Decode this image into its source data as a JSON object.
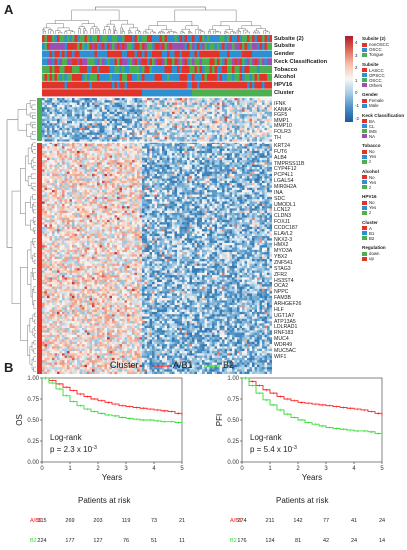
{
  "panel_a": {
    "letter": "A",
    "annotation_rows": [
      "Subsite (2)",
      "Subsite",
      "Gender",
      "Keck Classification",
      "Tobacco",
      "Alcohol",
      "HPV16",
      "Cluster"
    ],
    "genes": [
      "IFNK",
      "KANK4",
      "FGF5",
      "MMP1",
      "MMP10",
      "FOLR3",
      "TH",
      "KRT24",
      "FUT6",
      "ALB4",
      "TMPRSS11B",
      "CYP4F12",
      "PCP4L1",
      "LGALS4",
      "MIR0H2A",
      "INA",
      "SDC",
      "UMODL1",
      "LCN12",
      "CLDN3",
      "FOXJ1",
      "CCDC187",
      "ELAVL2",
      "NKX2-3",
      "HMX2",
      "MYO3A",
      "YBX2",
      "ZNF541",
      "STAG3",
      "ZFR2",
      "HS3ST4",
      "OCA2",
      "NPPC",
      "FAM3B",
      "ARHGEF26",
      "HLF",
      "UGT1A7",
      "ATP13A5",
      "LDLRAD1",
      "RNF183",
      "MUC4",
      "WDR49",
      "MUC5AC",
      "WIF1"
    ],
    "colorbar": {
      "ticks": [
        "4",
        "3",
        "2",
        "1",
        "0",
        "-1",
        "-2"
      ]
    },
    "legends": [
      {
        "title": "Subsite (2)",
        "items": [
          {
            "label": "nonOSCC",
            "color": "#e0342b"
          },
          {
            "label": "OSCC",
            "color": "#2e8fd1"
          },
          {
            "label": "Tongue",
            "color": "#4caf50"
          }
        ]
      },
      {
        "title": "Subsite",
        "items": [
          {
            "label": "LASCC",
            "color": "#e0342b"
          },
          {
            "label": "OPSCC",
            "color": "#2e8fd1"
          },
          {
            "label": "OSCC",
            "color": "#4caf50"
          },
          {
            "label": "Others",
            "color": "#9c4fb0"
          }
        ]
      },
      {
        "title": "Gender",
        "items": [
          {
            "label": "Female",
            "color": "#e0342b"
          },
          {
            "label": "Male",
            "color": "#2e8fd1"
          }
        ]
      },
      {
        "title": "Keck Classification",
        "items": [
          {
            "label": "BA",
            "color": "#e0342b"
          },
          {
            "label": "CL",
            "color": "#2e8fd1"
          },
          {
            "label": "IMS",
            "color": "#4caf50"
          },
          {
            "label": "NA",
            "color": "#9c4fb0"
          }
        ]
      },
      {
        "title": "Tobacco",
        "items": [
          {
            "label": "No",
            "color": "#e0342b"
          },
          {
            "label": "Yes",
            "color": "#2e8fd1"
          },
          {
            "label": "z",
            "color": "#4caf50"
          }
        ]
      },
      {
        "title": "Alcohol",
        "items": [
          {
            "label": "No",
            "color": "#e0342b"
          },
          {
            "label": "Yes",
            "color": "#2e8fd1"
          },
          {
            "label": "z",
            "color": "#4caf50"
          }
        ]
      },
      {
        "title": "HPV16",
        "items": [
          {
            "label": "No",
            "color": "#e0342b"
          },
          {
            "label": "Yes",
            "color": "#2e8fd1"
          },
          {
            "label": "z",
            "color": "#4caf50"
          }
        ]
      },
      {
        "title": "Cluster",
        "items": [
          {
            "label": "A",
            "color": "#e0342b"
          },
          {
            "label": "B1",
            "color": "#2e8fd1"
          },
          {
            "label": "B2",
            "color": "#4caf50"
          }
        ]
      },
      {
        "title": "Regulation",
        "items": [
          {
            "label": "down",
            "color": "#4caf50"
          },
          {
            "label": "up",
            "color": "#e0342b"
          }
        ]
      }
    ]
  },
  "panel_b": {
    "letter": "B",
    "legend_title": "Cluster",
    "legend_items": [
      {
        "label": "A/B1",
        "color": "#ff2020"
      },
      {
        "label": "B2",
        "color": "#33dd33"
      }
    ],
    "risk_title": "Patients at risk",
    "risk_row_labels": [
      "A/B1",
      "B2"
    ]
  },
  "chart_data": [
    {
      "type": "line",
      "xlabel": "Years",
      "ylabel": "OS",
      "xlim": [
        0,
        5
      ],
      "ylim": [
        0,
        1
      ],
      "x_ticks": [
        "0",
        "1",
        "2",
        "3",
        "4",
        "5"
      ],
      "y_ticks": [
        "0.00",
        "0.25",
        "0.50",
        "0.75",
        "1.00"
      ],
      "annotation_line1": "Log-rank",
      "annotation_line2": "p = 2.3 x 10",
      "annotation_exp": "-3",
      "series": [
        {
          "name": "A/B1",
          "color": "#ff2020",
          "x": [
            0,
            0.25,
            0.5,
            0.75,
            1,
            1.25,
            1.5,
            1.75,
            2,
            2.25,
            2.5,
            2.75,
            3,
            3.25,
            3.5,
            3.75,
            4,
            4.25,
            4.5,
            4.75,
            5
          ],
          "y": [
            1.0,
            0.97,
            0.93,
            0.89,
            0.85,
            0.81,
            0.78,
            0.75,
            0.73,
            0.71,
            0.69,
            0.67,
            0.66,
            0.65,
            0.64,
            0.63,
            0.62,
            0.61,
            0.6,
            0.58,
            0.55
          ]
        },
        {
          "name": "B2",
          "color": "#33dd33",
          "x": [
            0,
            0.25,
            0.5,
            0.75,
            1,
            1.25,
            1.5,
            1.75,
            2,
            2.25,
            2.5,
            2.75,
            3,
            3.25,
            3.5,
            3.75,
            4,
            4.25,
            4.5,
            4.75,
            5
          ],
          "y": [
            1.0,
            0.94,
            0.87,
            0.79,
            0.72,
            0.67,
            0.63,
            0.6,
            0.58,
            0.56,
            0.55,
            0.53,
            0.52,
            0.51,
            0.5,
            0.5,
            0.49,
            0.48,
            0.48,
            0.47,
            0.46
          ]
        }
      ],
      "at_risk": {
        "times": [
          "0",
          "1",
          "2",
          "3",
          "4",
          "5"
        ],
        "A/B1": [
          "315",
          "269",
          "203",
          "119",
          "73",
          "21"
        ],
        "B2": [
          "224",
          "177",
          "127",
          "76",
          "51",
          "11"
        ]
      }
    },
    {
      "type": "line",
      "xlabel": "Years",
      "ylabel": "PFI",
      "xlim": [
        0,
        5
      ],
      "ylim": [
        0,
        1
      ],
      "x_ticks": [
        "0",
        "1",
        "2",
        "3",
        "4",
        "5"
      ],
      "y_ticks": [
        "0.00",
        "0.25",
        "0.50",
        "0.75",
        "1.00"
      ],
      "annotation_line1": "Log-rank",
      "annotation_line2": "p = 5.4 x 10",
      "annotation_exp": "-3",
      "series": [
        {
          "name": "A/B1",
          "color": "#ff2020",
          "x": [
            0,
            0.25,
            0.5,
            0.75,
            1,
            1.25,
            1.5,
            1.75,
            2,
            2.25,
            2.5,
            2.75,
            3,
            3.25,
            3.5,
            3.75,
            4,
            4.25,
            4.5,
            4.75,
            5
          ],
          "y": [
            1.0,
            0.96,
            0.91,
            0.86,
            0.82,
            0.78,
            0.75,
            0.73,
            0.71,
            0.7,
            0.69,
            0.68,
            0.67,
            0.66,
            0.65,
            0.64,
            0.63,
            0.62,
            0.6,
            0.58,
            0.55
          ]
        },
        {
          "name": "B2",
          "color": "#33dd33",
          "x": [
            0,
            0.25,
            0.5,
            0.75,
            1,
            1.25,
            1.5,
            1.75,
            2,
            2.25,
            2.5,
            2.75,
            3,
            3.25,
            3.5,
            3.75,
            4,
            4.25,
            4.5,
            4.75,
            5
          ],
          "y": [
            1.0,
            0.91,
            0.82,
            0.74,
            0.68,
            0.62,
            0.57,
            0.53,
            0.5,
            0.47,
            0.45,
            0.43,
            0.41,
            0.4,
            0.39,
            0.38,
            0.37,
            0.37,
            0.36,
            0.34,
            0.32
          ]
        }
      ],
      "at_risk": {
        "times": [
          "0",
          "1",
          "2",
          "3",
          "4",
          "5"
        ],
        "A/B1": [
          "274",
          "211",
          "142",
          "77",
          "41",
          "24"
        ],
        "B2": [
          "176",
          "124",
          "81",
          "42",
          "24",
          "14"
        ]
      }
    }
  ]
}
